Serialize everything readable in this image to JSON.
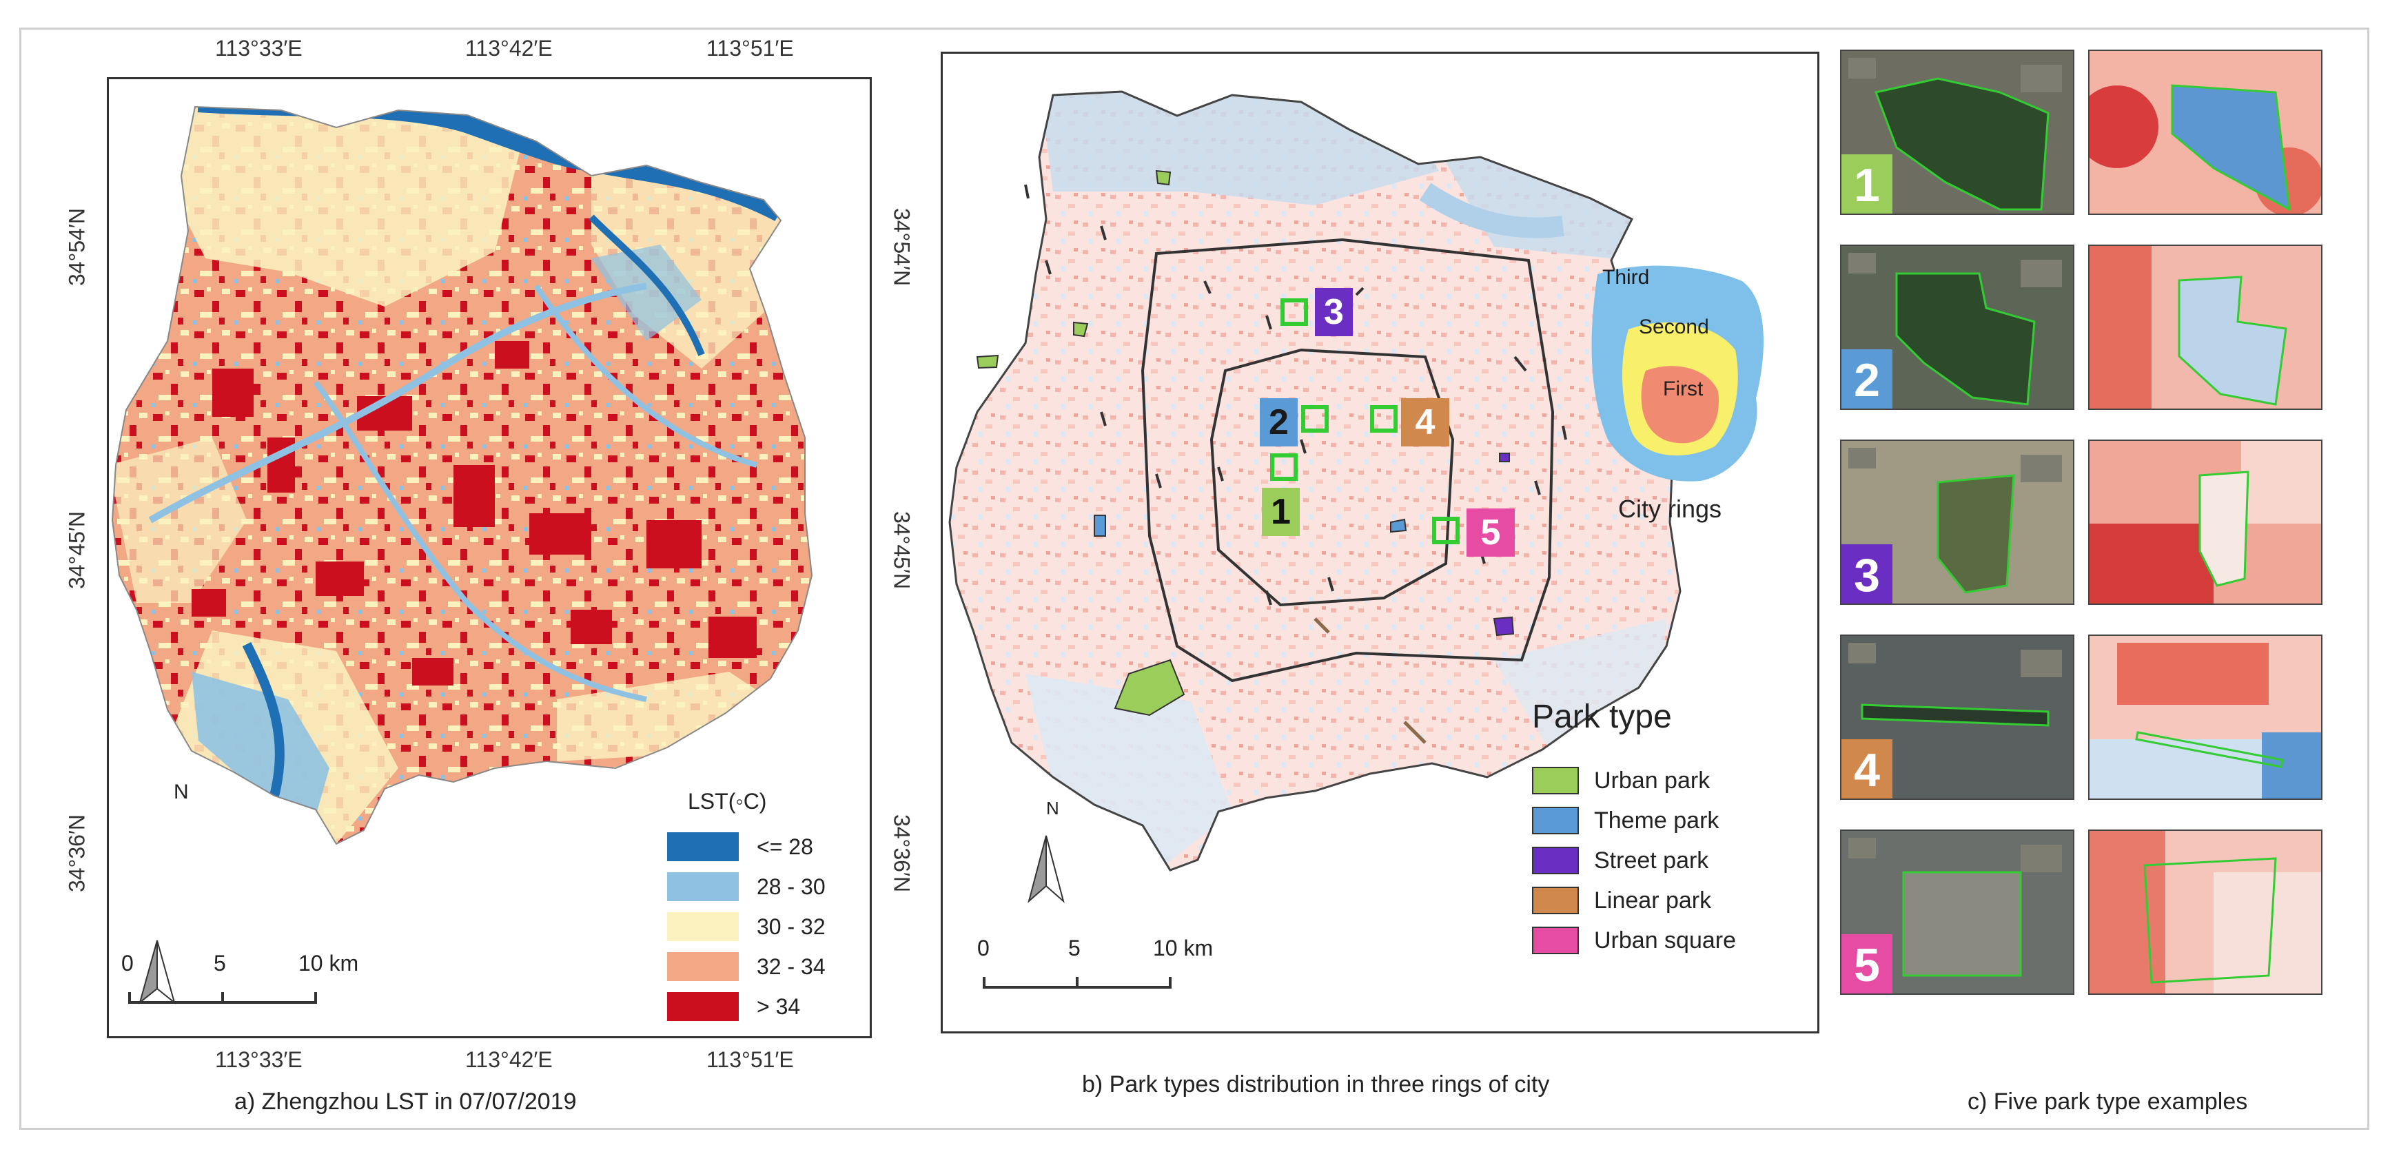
{
  "panel_a": {
    "caption": "a)  Zhengzhou LST in 07/07/2019",
    "top_lon": [
      "113°33′E",
      "113°42′E",
      "113°51′E"
    ],
    "bottom_lon": [
      "113°33′E",
      "113°42′E",
      "113°51′E"
    ],
    "left_lat": [
      "34°54′N",
      "34°45′N",
      "34°36′N"
    ],
    "right_lat": [
      "34°54′N",
      "34°45′N",
      "34°36′N"
    ],
    "legend_title": "LST(◦C)",
    "legend": [
      {
        "label": "<= 28",
        "color": "#1f6fb4"
      },
      {
        "label": "28 - 30",
        "color": "#8fc2e2"
      },
      {
        "label": "30 - 32",
        "color": "#fbf2c0"
      },
      {
        "label": "32 - 34",
        "color": "#f2a785"
      },
      {
        "label": "> 34",
        "color": "#cc0f1f"
      }
    ],
    "north": "N",
    "scale": [
      "0",
      "5",
      "10 km"
    ]
  },
  "panel_b": {
    "caption": "b) Park types distribution in three rings of city",
    "rings_labels": {
      "third": "Third",
      "second": "Second",
      "first": "First",
      "title": "City rings"
    },
    "park_type_title": "Park type",
    "park_types": [
      {
        "label": "Urban park",
        "color": "#9acd5a"
      },
      {
        "label": "Theme park",
        "color": "#5b9bd5"
      },
      {
        "label": "Street park",
        "color": "#6a2fc2"
      },
      {
        "label": "Linear park",
        "color": "#d0884c"
      },
      {
        "label": "Urban square",
        "color": "#e64ca3"
      }
    ],
    "markers": [
      {
        "num": "1",
        "color": "#9acd5a"
      },
      {
        "num": "2",
        "color": "#5b9bd5"
      },
      {
        "num": "3",
        "color": "#6a2fc2"
      },
      {
        "num": "4",
        "color": "#d0884c"
      },
      {
        "num": "5",
        "color": "#e64ca3"
      }
    ],
    "north": "N",
    "scale": [
      "0",
      "5",
      "10 km"
    ]
  },
  "panel_c": {
    "caption": "c) Five  park type examples",
    "examples": [
      {
        "num": "1",
        "color": "#9acd5a"
      },
      {
        "num": "2",
        "color": "#5b9bd5"
      },
      {
        "num": "3",
        "color": "#6a2fc2"
      },
      {
        "num": "4",
        "color": "#d0884c"
      },
      {
        "num": "5",
        "color": "#e64ca3"
      }
    ]
  }
}
